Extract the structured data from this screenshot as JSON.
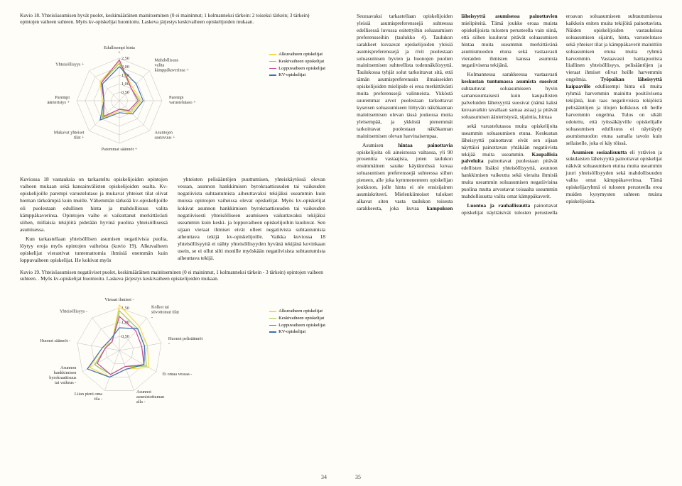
{
  "left": {
    "caption1": "Kuvio 18. Yhteisöasumisen hyvät puolet, keskimääräinen mainitseminen (0 ei maininnut; 1 kolmanneksi tärkein: 2 toiseksi tärkein; 3 tärkein) opintojen vaiheen suhteen. Myös kv-opiskelijat huomioitu. Laskeva järjestys keskivaiheen opiskelijoiden mukaan.",
    "chart1": {
      "axes": [
        "Edullisempi hinta +",
        "Mahdollisuus valita kämppäkaverinsa +",
        "Parempi varustelutaso +",
        "Asuntojen saatavuus +",
        "Paremmat säännöt +",
        "Mukavat yhteiset tilat +",
        "Parempi äänieristys +",
        "Yhteisöllisyys +"
      ],
      "ticks": [
        0.5,
        1.0,
        1.5,
        2.0,
        2.5
      ],
      "legend": [
        "Alkuvaiheen opiskelijat",
        "Keskivaiheen opiskelijat",
        "Loppuvaiheen opiskelijat",
        "KV-opiskelijat"
      ],
      "colors": [
        "#f6d84b",
        "#9ac84a",
        "#c44a9e",
        "#3b6fb0"
      ],
      "series": [
        [
          2.3,
          1.1,
          1.3,
          1.0,
          0.6,
          1.5,
          1.0,
          1.6
        ],
        [
          2.2,
          1.0,
          1.2,
          0.9,
          0.5,
          1.4,
          0.9,
          1.5
        ],
        [
          2.4,
          1.0,
          1.1,
          0.8,
          0.5,
          1.3,
          0.9,
          1.5
        ],
        [
          2.0,
          1.4,
          1.4,
          1.1,
          0.7,
          1.6,
          0.9,
          1.4
        ]
      ]
    },
    "para": [
      "Kuviossa 18 vastauksia on tarkasteltu opiskelijoiden opintojen vaiheen mukaan sekä kansainvälisten opiskelijoiden osalta. Kv-opiskelijoille parempi varustelutaso ja mukavat yhteiset tilat olivat hieman tärkeämpiä kuin muille. Vähemmän tärkeää kv-opiskelijoille oli puolestaan edullinen hinta ja mahdollisuus valita kämppäkaverinsa. Opintojen vaihe ei vaikuttanut merkittävästi siihen, millaisia tekijöitä pidetään hyvinä puolina yhteisöllisessä asumisessa.",
      "Kun tarkastellaan yhteisöllisen asumisen negatiivisia puolia, löytyy eroja myös opintojen vaiheista (kuvio 19). Alkuvaiheen opiskelijat vierastivat tuntemattomia ihmisiä enemmän kuin loppuvaiheen opiskelijat. He kokivat myös",
      "yhteisten pelisääntöjen puuttumisen, yhteiskäytössä olevan vessan, asunnon hankkimisen byrokraattisuuden tai vaikeuden negatiivista suhtautumista aiheuttavaksi tekijäksi useammin kuin muissa opintojen vaiheissa olevat opiskelijat. Myös kv-opiskelijat kokivat asunnon hankkimisen byrokraattisuuden tai vaikeuden negatiivisesti yhteisölliseen asumiseen vaikuttavaksi tekijäksi useammin kuin keski- ja loppuvaiheen opiskelijoihin kuuluvat. Sen sijaan vieraat ihmiset eivät olleet negatiivista suhtautumista aiheuttava tekijä kv-opiskelijoille. Vaikka kuviossa 18 yhteisöllisyyttä ei nähty yhteisöllisyyden hyvänä tekijänä kovinkaan usein, se ei ollut silti monille myöskään negatiivisista suhtautumista aiheuttava tekijä."
    ],
    "caption2": "Kuvio 19. Yhteisöasumisen negatiiviset puolet, keskimääräinen mainitseminen (0 ei maininnut, 1 kolmanneksi tärkein - 3 tärkein) opintojen vaiheen suhteen. . Myös kv-opiskelijat huomioitu. Laskeva järjestys keskivaiheen opiskelijoiden mukaan.",
    "chart2": {
      "axes": [
        "Vieraat ihmiset -",
        "Kolkot tai siivottomat tilat -",
        "Huonot pelisäännöt -",
        "Ei omaa vessaa -",
        "Asunnot asumistottuman alla -",
        "Liian pieni oma tila -",
        "Asunnon hankkimisen byrokraattisuus tai vaikeus -",
        "Huonot säännöt -",
        "Yhteisöllisyys -"
      ],
      "ticks": [
        0.5,
        1.0,
        1.5
      ],
      "series": [
        [
          1.6,
          1.1,
          1.0,
          1.2,
          0.7,
          1.0,
          1.2,
          0.6,
          0.4
        ],
        [
          1.4,
          1.0,
          0.9,
          1.1,
          0.6,
          0.9,
          1.0,
          0.5,
          0.4
        ],
        [
          1.2,
          0.9,
          0.8,
          1.0,
          0.6,
          0.9,
          0.9,
          0.5,
          0.4
        ],
        [
          0.8,
          1.0,
          0.9,
          1.0,
          0.7,
          1.0,
          1.3,
          0.6,
          0.5
        ]
      ]
    },
    "pagenum": "34"
  },
  "right": {
    "para": [
      "Seuraavaksi tarkastellaan opiskelijoiden yleisiä asumispreferenssejä suhteessa edellisessä luvussa esitettyihin soluasumisen preferensseihin (taulukko 4). Taulukon sarakkeet kuvaavat opiskelijoiden yleisiä asumispreferenssejä ja rivit puolestaan soluasumisen hyvien ja huonojen puolien mainitsemisen suhteellista todennäköisyyttä. Taulukossa tyhjät solut tarkoittavat sitä, että tämän asumispreferenssin ilmaisseiden opiskelijoiden mielipide ei eroa merkittävästi muita preferenssejä valinneista. Ykköstä suuremmat arvot puolestaan tarkoittavat kyseisen soluasumiseen liittyvän näkökannan mainitsemisen olevan tässä joukossa muita yleisempää, ja ykköstä pienemmät tarkoittavat puolestaan näkökannan mainitsemisen olevan harvinaisempaa.",
      "Asumisen hintaa painottavia opiskelijoita oli aineistossa valtaosa, yli 90 prosenttia vastaajista, joten taulukon ensimmäinen sarake käytännössä kuvaa soluasumisen preferenssejä suhteessa siihen pieneen, alle joka kymmenenteen opiskelijan joukkoon, jolle hinta ei ole ensisijainen asumiskriteeri. Mielenkiintoiset tulokset alkavat siten vasta taulukon toisesta sarakkeesta, joka kuvaa kampuksen läheisyyttä asumisessa painottavien mielipiteitä. Tämä joukko eroaa muista opiskelijoista tulosten perusteella vain siinä, että siihen kuuluvat pitävät soluasumisen hintaa muita useammin merkittävänä asumismuodon etuna sekä vastaavasti vieraiden ihmisten kanssa asumista negatiivisena tekijänä.",
      "Kolmannessa sarakkeessa vastaavasti keskustan tuntumassa asumista suosivat suhtautuvat soluasumiseen hyvin samansuuntaisesti kuin kaupallisten palveluiden läheisyyttä suosivat (nämä kaksi kuvaavatkin tavallaan samaa asiaa) ja pitävät soluasumisen äänieristystä, sijaintia, hintaa",
      "sekä varustelutasoa muita opiskelijoita useammin soluasumisen etuna. Keskustan läheisyyttä painottavat eivät sen sijaan näyttäisi painottavan yhtäkään negatiivista tekijää muita useammin. Kaupallisia palveluita painottavat puolestaan pitävät edellisten lisäksi yhteisöllisyyttä, asunnon hankkimisen vaikeutta sekä vieraita ihmisiä muita useammin soluasumisen negatiivisina puolina mutta arvostavat toisaalta useammin mahdollisuutta valita omat kämppäkaverit.",
      "Luontoa ja rauhallisuutta painottavat opiskelijat näyttäisivät tulosten perusteella eroavan soluasumiseen suhtautumisessa kaikkein eniten muita tekijöitä painottavista. Näiden opiskelijoiden vastauksissa soluasumisen sijainti, hinta, varustelutaso sekä yhteiset tilat ja kämppäkaverit mainittiin soluasumisen etuna muita ryhmiä harvemmin. Vastaavasti haittapuolista liiallinen yhteisöllisyys, pelisääntöjen ja vieraat ihmiset olivat heille harvemmin ongelmia. Työpaikan läheisyyttä kaipaaville edullisempi hinta oli muita ryhmiä harvemmin mainittu positiivisena tekijänä, kun taas negatiivisista tekijöistä pelisääntöjen ja tilojen kolkkous oli heille harvemmin ongelma. Tulos on sikäli odotettu, että työssäkäyville opiskelijalle soluasumisen edullisuus ei näyttäydy asumismuodon etuna samalla tavoin kuin sellaiselle, joka ei käy töissä.",
      "Asumisen sosiaalisuutta eli ystävien ja sukulaisten läheisyyttä painottavat opiskelijat näkivät soluasumisen etuina muita useammin juuri yhteisöllisyyden sekä mahdollisuuden valita omat kämppäkaverinsa. Tämä opiskelijaryhmä ei tulosten perusteella eroa muiden kysymysten suhteen muista opiskelijoista."
    ],
    "pagenum": "35"
  }
}
